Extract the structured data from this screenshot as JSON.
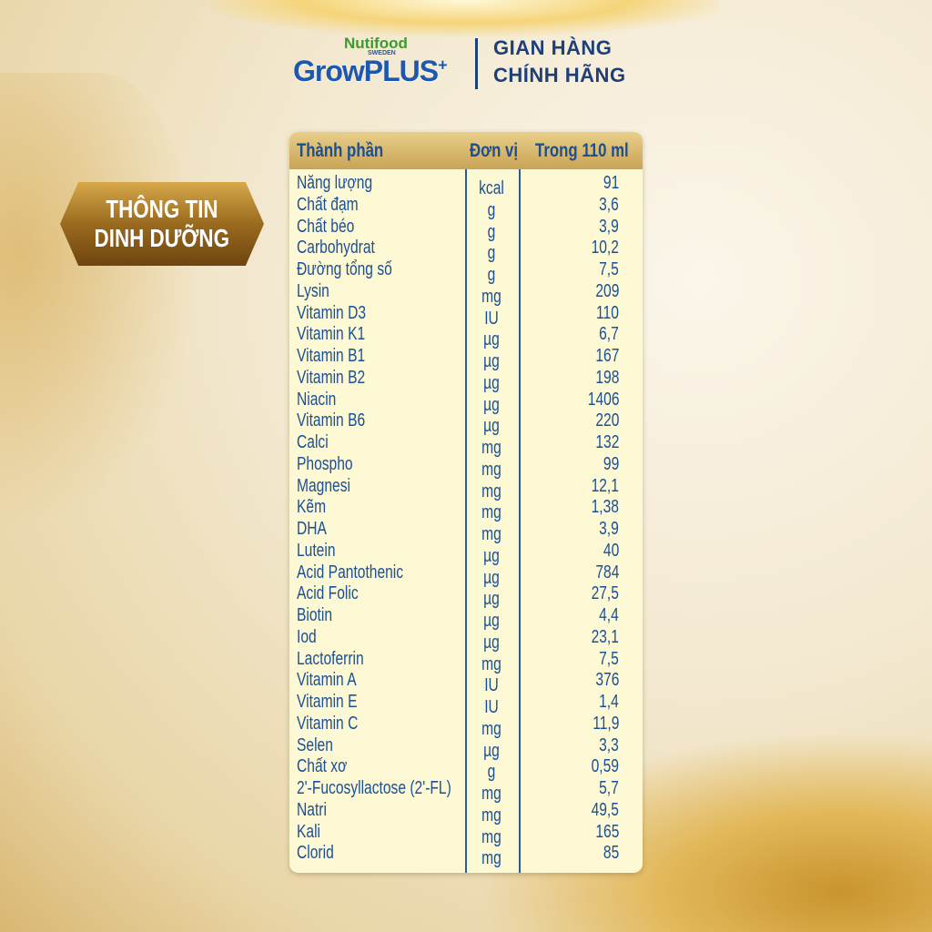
{
  "brand": {
    "nutifood": "Nutifood",
    "sweden": "SWEDEN",
    "product": "GrowPLUS",
    "plus": "+",
    "store_line1": "GIAN HÀNG",
    "store_line2": "CHÍNH HÃNG"
  },
  "badge": {
    "line1": "THÔNG TIN",
    "line2": "DINH DƯỠNG"
  },
  "table": {
    "headers": [
      "Thành phần",
      "Đơn vị",
      "Trong 110 ml"
    ],
    "rows": [
      [
        "Năng lượng",
        "kcal",
        "91"
      ],
      [
        "Chất đạm",
        "g",
        "3,6"
      ],
      [
        "Chất béo",
        "g",
        "3,9"
      ],
      [
        "Carbohydrat",
        "g",
        "10,2"
      ],
      [
        "Đường tổng số",
        "g",
        "7,5"
      ],
      [
        "Lysin",
        "mg",
        "209"
      ],
      [
        "Vitamin D3",
        "IU",
        "110"
      ],
      [
        "Vitamin K1",
        "µg",
        "6,7"
      ],
      [
        "Vitamin B1",
        "µg",
        "167"
      ],
      [
        "Vitamin B2",
        "µg",
        "198"
      ],
      [
        "Niacin",
        "µg",
        "1406"
      ],
      [
        "Vitamin B6",
        "µg",
        "220"
      ],
      [
        "Calci",
        "mg",
        "132"
      ],
      [
        "Phospho",
        "mg",
        "99"
      ],
      [
        "Magnesi",
        "mg",
        "12,1"
      ],
      [
        "Kẽm",
        "mg",
        "1,38"
      ],
      [
        "DHA",
        "mg",
        "3,9"
      ],
      [
        "Lutein",
        "µg",
        "40"
      ],
      [
        "Acid Pantothenic",
        "µg",
        "784"
      ],
      [
        "Acid Folic",
        "µg",
        "27,5"
      ],
      [
        "Biotin",
        "µg",
        "4,4"
      ],
      [
        "Iod",
        "µg",
        "23,1"
      ],
      [
        "Lactoferrin",
        "mg",
        "7,5"
      ],
      [
        "Vitamin A",
        "IU",
        "376"
      ],
      [
        "Vitamin E",
        "IU",
        "1,4"
      ],
      [
        "Vitamin C",
        "mg",
        "11,9"
      ],
      [
        "Selen",
        "µg",
        "3,3"
      ],
      [
        "Chất xơ",
        "g",
        "0,59"
      ],
      [
        "2'-Fucosyllactose (2'-FL)",
        "mg",
        "5,7"
      ],
      [
        "Natri",
        "mg",
        "49,5"
      ],
      [
        "Kali",
        "mg",
        "165"
      ],
      [
        "Clorid",
        "mg",
        "85"
      ]
    ]
  },
  "colors": {
    "text_blue": "#1b4f96",
    "header_gold": "#c9a356",
    "table_bg": "#fdf9d4",
    "brand_green": "#3c9a2e"
  }
}
